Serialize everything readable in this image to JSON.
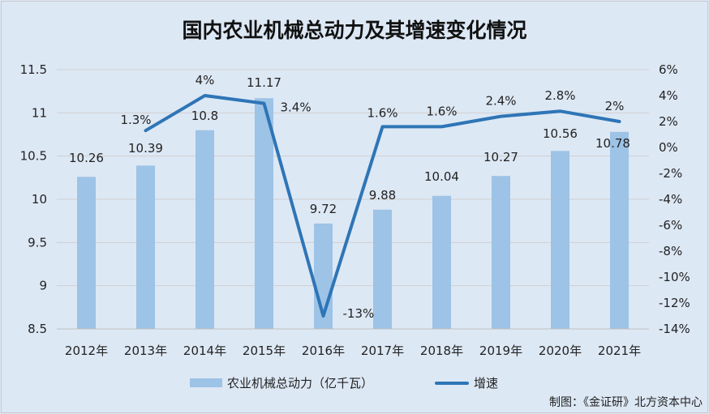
{
  "title": "国内农业机械总动力及其增速变化情况",
  "source": "制图：《金证研》北方资本中心",
  "legend": {
    "bar_label": "农业机械总动力（亿千瓦）",
    "line_label": "增速"
  },
  "colors": {
    "bar": "#9dc3e6",
    "line": "#2e75b6",
    "background": "#dde8f5",
    "grid": "#cfcfcf"
  },
  "chart_data": {
    "type": "bar",
    "categories": [
      "2012年",
      "2013年",
      "2014年",
      "2015年",
      "2016年",
      "2017年",
      "2018年",
      "2019年",
      "2020年",
      "2021年"
    ],
    "series": [
      {
        "name": "农业机械总动力（亿千瓦）",
        "type": "bar",
        "axis": "left",
        "values": [
          10.26,
          10.39,
          10.8,
          11.17,
          9.72,
          9.88,
          10.04,
          10.27,
          10.56,
          10.78
        ],
        "labels": [
          "10.26",
          "10.39",
          "10.8",
          "11.17",
          "9.72",
          "9.88",
          "10.04",
          "10.27",
          "10.56",
          "10.78"
        ]
      },
      {
        "name": "增速",
        "type": "line",
        "axis": "right",
        "values": [
          null,
          1.3,
          4,
          3.4,
          -13,
          1.6,
          1.6,
          2.4,
          2.8,
          2
        ],
        "labels": [
          "",
          "1.3%",
          "4%",
          "3.4%",
          "-13%",
          "1.6%",
          "1.6%",
          "2.4%",
          "2.8%",
          "2%"
        ]
      }
    ],
    "y_left": {
      "min": 8.5,
      "max": 11.5,
      "ticks": [
        "8.5",
        "9",
        "9.5",
        "10",
        "10.5",
        "11",
        "11.5"
      ],
      "tick_values": [
        8.5,
        9,
        9.5,
        10,
        10.5,
        11,
        11.5
      ]
    },
    "y_right": {
      "min": -14,
      "max": 6,
      "ticks": [
        "-14%",
        "-12%",
        "-10%",
        "-8%",
        "-6%",
        "-4%",
        "-2%",
        "0%",
        "2%",
        "4%",
        "6%"
      ],
      "tick_values": [
        -14,
        -12,
        -10,
        -8,
        -6,
        -4,
        -2,
        0,
        2,
        4,
        6
      ]
    },
    "grid": true,
    "legend_position": "bottom"
  }
}
